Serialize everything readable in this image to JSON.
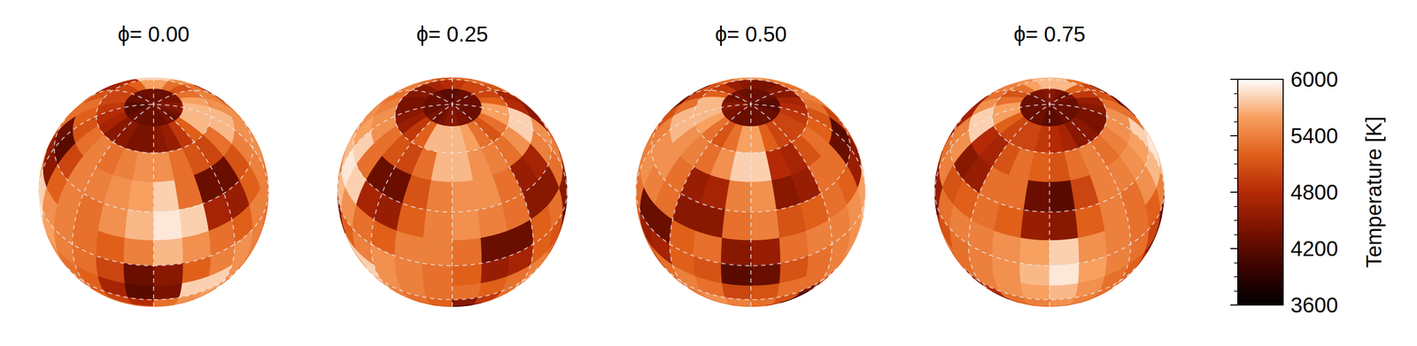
{
  "chart_data": {
    "type": "surface_map",
    "panels": [
      {
        "title": "ϕ= 0.00",
        "phase": 0.0
      },
      {
        "title": "ϕ= 0.25",
        "phase": 0.25
      },
      {
        "title": "ϕ= 0.50",
        "phase": 0.5
      },
      {
        "title": "ϕ= 0.75",
        "phase": 0.75
      }
    ],
    "grid": true,
    "temperature_map": [
      [
        4300,
        4300,
        4400,
        4300,
        4400,
        4500,
        4500,
        4400,
        4400,
        4300,
        4300,
        4300,
        4300,
        4300,
        4300,
        4300,
        4300,
        4200,
        4200,
        4200,
        4300,
        4300,
        4300,
        4300
      ],
      [
        4500,
        4600,
        4900,
        5200,
        5700,
        5700,
        5700,
        5600,
        5300,
        5100,
        5300,
        5600,
        5600,
        5200,
        5000,
        5000,
        5000,
        4900,
        4800,
        4700,
        4500,
        4500,
        4400,
        4400
      ],
      [
        5500,
        5300,
        5100,
        5000,
        5300,
        5700,
        5700,
        5500,
        5400,
        5300,
        5500,
        5800,
        5800,
        4800,
        4700,
        5100,
        5300,
        5200,
        5100,
        5300,
        5400,
        5300,
        5400,
        5500
      ],
      [
        5800,
        5300,
        4300,
        4300,
        5100,
        5400,
        5500,
        5500,
        5300,
        4600,
        4700,
        5400,
        5500,
        4500,
        4600,
        5300,
        5300,
        4300,
        4200,
        5000,
        5400,
        5400,
        5500,
        5600
      ],
      [
        5900,
        5800,
        4700,
        4600,
        5200,
        5400,
        5500,
        5400,
        5300,
        4500,
        4500,
        5300,
        5400,
        5100,
        5200,
        5300,
        5200,
        4600,
        4500,
        5200,
        5400,
        5300,
        5500,
        5700
      ],
      [
        5700,
        5500,
        5300,
        5200,
        5400,
        5400,
        5300,
        4300,
        4300,
        5200,
        5300,
        4500,
        4600,
        5300,
        5400,
        5400,
        5500,
        5600,
        5800,
        5500,
        5400,
        5300,
        5200,
        5400
      ],
      [
        4500,
        5200,
        5400,
        5500,
        5400,
        5300,
        5200,
        4600,
        4700,
        5200,
        5100,
        4200,
        4300,
        5100,
        5300,
        5400,
        5500,
        5700,
        5900,
        5600,
        5400,
        5300,
        5000,
        4300
      ],
      [
        4400,
        5800,
        5800,
        5500,
        5400,
        5300,
        5300,
        5200,
        5300,
        5400,
        5300,
        5000,
        5100,
        5300,
        5300,
        5400,
        5500,
        5600,
        5700,
        5500,
        5300,
        5200,
        4700,
        4200
      ],
      [
        5300,
        5500,
        5600,
        5400,
        5300,
        5200,
        4500,
        4900,
        5300,
        5400,
        5500,
        5400,
        5300,
        5100,
        4300,
        4800,
        5300,
        5400,
        5500,
        5400,
        5300,
        5200,
        5000,
        4800
      ],
      [
        5300,
        5400,
        5400,
        5300,
        5200,
        5100,
        4000,
        4400,
        5200,
        5300,
        5400,
        5300,
        5200,
        4900,
        3900,
        4300,
        5200,
        5300,
        5400,
        5300,
        5200,
        5300,
        5300,
        5300
      ],
      [
        5200,
        5300,
        5200,
        5300,
        5200,
        5300,
        5100,
        5200,
        5300,
        5200,
        5300,
        5200,
        5300,
        5200,
        5100,
        5200,
        5300,
        5200,
        5300,
        5200,
        5300,
        5200,
        5300,
        5200
      ],
      [
        5200,
        5200,
        5200,
        5200,
        5200,
        5200,
        5200,
        5200,
        5200,
        5200,
        5200,
        5200,
        5200,
        5200,
        5200,
        5200,
        5200,
        5200,
        5200,
        5200,
        5200,
        5200,
        5200,
        5200
      ]
    ],
    "colorbar": {
      "label": "Temperature [K]",
      "range": [
        3600,
        6000
      ],
      "ticks": [
        3600,
        4200,
        4800,
        5400,
        6000
      ]
    }
  }
}
